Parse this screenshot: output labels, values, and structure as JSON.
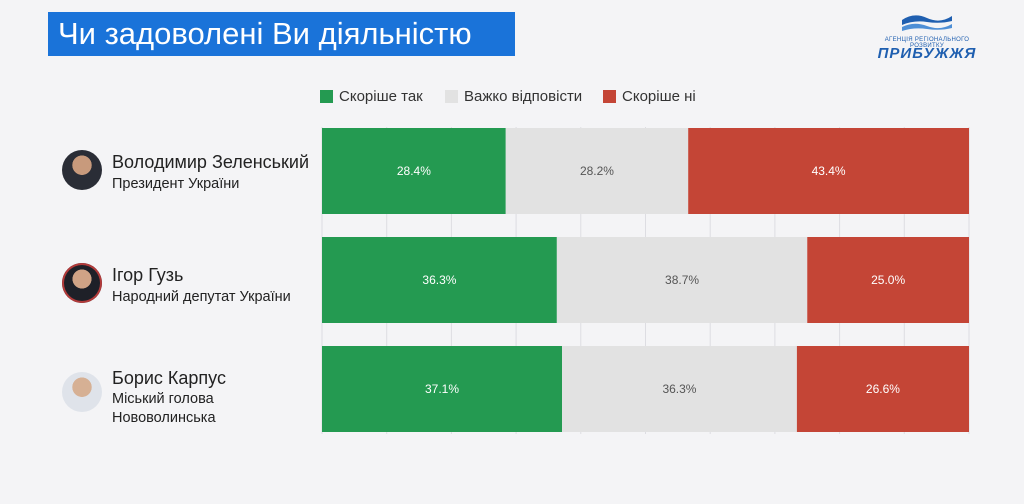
{
  "header": {
    "title": "Чи задоволені Ви діяльністю"
  },
  "logo": {
    "small_text": "АГЕНЦІЯ РЕГІОНАЛЬНОГО РОЗВИТКУ",
    "name": "ПРИБУЖЖЯ",
    "color": "#1f5fb0"
  },
  "people": [
    {
      "name": "Володимир Зеленський",
      "role_lines": [
        "Президент України"
      ]
    },
    {
      "name": "Ігор Гузь",
      "role_lines": [
        "Народний депутат України"
      ]
    },
    {
      "name": "Борис Карпус",
      "role_lines": [
        "Міський голова",
        "Нововолинська"
      ]
    }
  ],
  "chart_data": {
    "type": "bar",
    "orientation": "horizontal",
    "stacked": true,
    "normalized_100": true,
    "categories": [
      "Володимир Зеленський",
      "Ігор Гузь",
      "Борис Карпус"
    ],
    "series": [
      {
        "name": "Скоріше так",
        "color": "#249a51",
        "values": [
          28.4,
          36.3,
          37.1
        ],
        "labels": [
          "28.4%",
          "36.3%",
          "37.1%"
        ]
      },
      {
        "name": "Важко відповісти",
        "color": "#e2e2e2",
        "values": [
          28.2,
          38.7,
          36.3
        ],
        "labels": [
          "28.2%",
          "38.7%",
          "36.3%"
        ]
      },
      {
        "name": "Скоріше ні",
        "color": "#c44536",
        "values": [
          43.4,
          25.0,
          26.6
        ],
        "labels": [
          "43.4%",
          "25.0%",
          "26.6%"
        ]
      }
    ],
    "xlim": [
      0,
      100
    ],
    "grid": true,
    "legend_position": "top"
  }
}
